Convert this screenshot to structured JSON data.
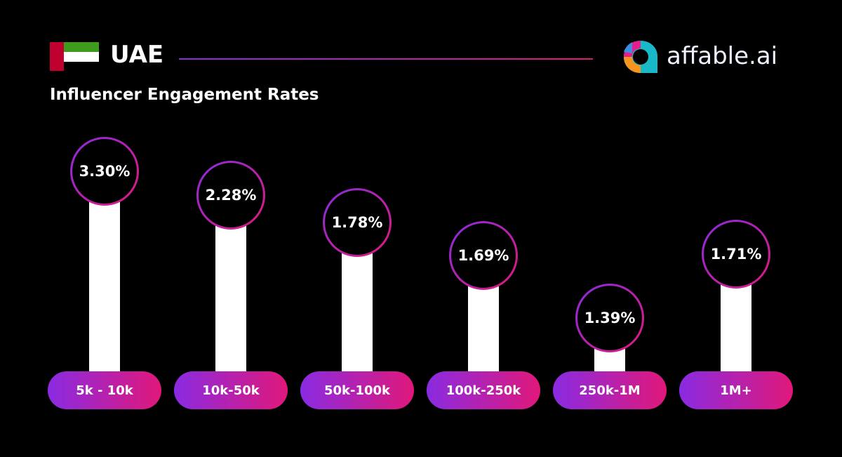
{
  "header": {
    "country": "UAE",
    "subtitle": "Influencer Engagement Rates",
    "brand": "affable.ai"
  },
  "colors": {
    "accent_start": "#8a2be2",
    "accent_end": "#e0187a",
    "bar": "#ffffff",
    "background": "#000000"
  },
  "chart_data": {
    "type": "bar",
    "title": "Influencer Engagement Rates",
    "categories": [
      "5k - 10k",
      "10k-50k",
      "50k-100k",
      "100k-250k",
      "250k-1M",
      "1M+"
    ],
    "values": [
      3.3,
      2.28,
      1.78,
      1.69,
      1.39,
      1.71
    ],
    "labels": [
      "3.30%",
      "2.28%",
      "1.78%",
      "1.69%",
      "1.39%",
      "1.71%"
    ],
    "unit": "%",
    "grid": false
  }
}
